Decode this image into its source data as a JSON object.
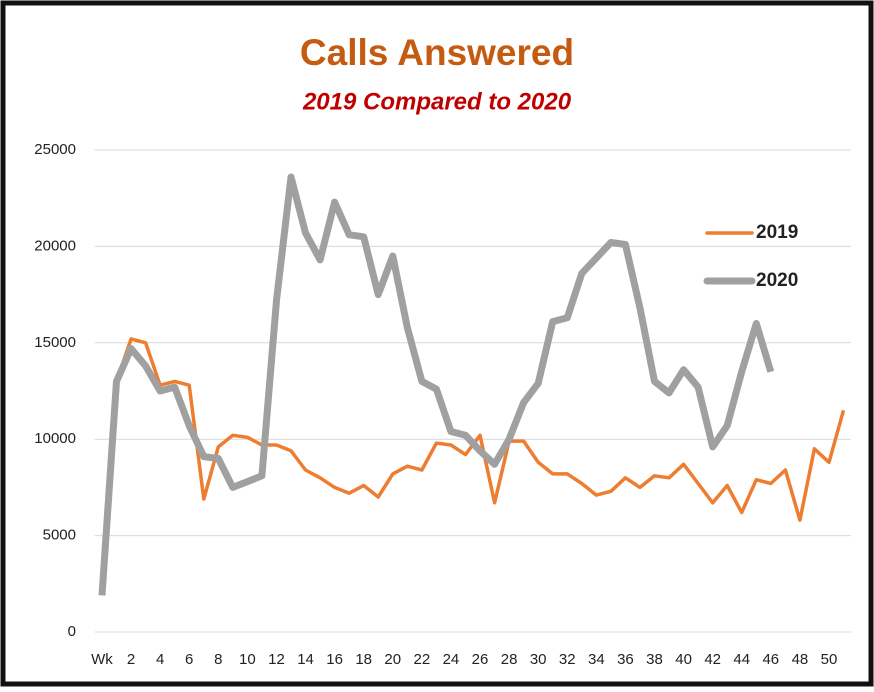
{
  "chart_data": {
    "type": "line",
    "title": "Calls Answered",
    "subtitle": "2019 Compared to 2020",
    "categories": [
      "Wk",
      null,
      "2",
      null,
      "4",
      null,
      "6",
      null,
      "8",
      null,
      "10",
      null,
      "12",
      null,
      "14",
      null,
      "16",
      null,
      "18",
      null,
      "20",
      null,
      "22",
      null,
      "24",
      null,
      "26",
      null,
      "28",
      null,
      "30",
      null,
      "32",
      null,
      "34",
      null,
      "36",
      null,
      "38",
      null,
      "40",
      null,
      "42",
      null,
      "44",
      null,
      "46",
      null,
      "48",
      null,
      "50",
      null
    ],
    "series": [
      {
        "name": "2019",
        "color": "#ed7d31",
        "values": [
          null,
          13000,
          15200,
          15000,
          12800,
          13000,
          12800,
          6900,
          9600,
          10200,
          10100,
          9700,
          9700,
          9400,
          8400,
          8000,
          7500,
          7200,
          7600,
          7000,
          8200,
          8600,
          8400,
          9800,
          9700,
          9200,
          10200,
          6700,
          9900,
          9900,
          8800,
          8200,
          8200,
          7700,
          7100,
          7300,
          8000,
          7500,
          8100,
          8000,
          8700,
          7700,
          6700,
          7600,
          6200,
          7900,
          7700,
          8400,
          5800,
          9500,
          8800,
          11500
        ]
      },
      {
        "name": "2020",
        "color": "#a0a0a0",
        "values": [
          1900,
          13000,
          14700,
          13800,
          12500,
          12700,
          10700,
          9100,
          9000,
          7500,
          7800,
          8100,
          17200,
          23600,
          20700,
          19300,
          22300,
          20600,
          20500,
          17500,
          19500,
          15800,
          13000,
          12600,
          10400,
          10200,
          9400,
          8700,
          10000,
          11900,
          12900,
          16100,
          16300,
          18600,
          19400,
          20200,
          20100,
          16800,
          13000,
          12400,
          13600,
          12700,
          9600,
          10700,
          13500,
          16000,
          13500,
          null,
          null,
          null,
          null,
          null
        ]
      }
    ],
    "ylim": [
      0,
      25000
    ],
    "yticks": [
      0,
      5000,
      10000,
      15000,
      20000,
      25000
    ],
    "grid": true,
    "legend": "upper right"
  }
}
